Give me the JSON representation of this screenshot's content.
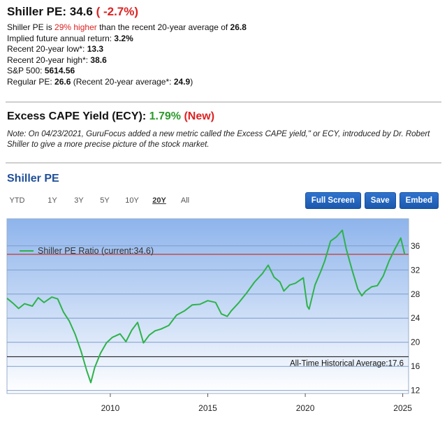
{
  "header": {
    "title_prefix": "Shiller PE: ",
    "title_value": "34.6",
    "title_change": "( -2.7%)"
  },
  "stats": {
    "line1_pre": "Shiller PE is ",
    "line1_pct": "29% higher",
    "line1_mid": " than the recent 20-year average of ",
    "line1_avg": "26.8",
    "line2_label": "Implied future annual return: ",
    "line2_value": "3.2%",
    "line3_label": "Recent 20-year low*: ",
    "line3_value": "13.3",
    "line4_label": "Recent 20-year high*: ",
    "line4_value": "38.6",
    "line5_label": "S&P 500: ",
    "line5_value": "5614.56",
    "line6_label": "Regular PE: ",
    "line6_value": "26.6",
    "line6_mid": " (Recent 20-year average*: ",
    "line6_avg": "24.9",
    "line6_end": ")"
  },
  "ecy": {
    "label": "Excess CAPE Yield (ECY): ",
    "value": "1.79%",
    "badge": "(New)"
  },
  "note": "Note: On 04/23/2021, GuruFocus added a new metric called the Excess CAPE yield,\" or ECY, introduced by Dr. Robert Shiller to give a more precise picture of the stock market.",
  "chart_section": {
    "title": "Shiller PE",
    "ranges": [
      "YTD",
      "1Y",
      "3Y",
      "5Y",
      "10Y",
      "20Y",
      "All"
    ],
    "active_range": "20Y",
    "buttons": {
      "fullscreen": "Full Screen",
      "save": "Save",
      "embed": "Embed"
    }
  },
  "colors": {
    "line": "#2db34a",
    "current_line": "#c0392b",
    "average_line": "#222222",
    "plot_bg_top": "#8eb4ec",
    "plot_bg_bottom": "#ffffff",
    "accent": "#1f5fbf"
  },
  "chart_data": {
    "type": "line",
    "series": [
      {
        "name": "Shiller PE Ratio (current:34.6)",
        "x": [
          2004.7,
          2005.0,
          2005.3,
          2005.6,
          2006.0,
          2006.3,
          2006.6,
          2007.0,
          2007.3,
          2007.6,
          2007.9,
          2008.2,
          2008.5,
          2008.8,
          2009.0,
          2009.2,
          2009.5,
          2009.8,
          2010.1,
          2010.5,
          2010.8,
          2011.1,
          2011.4,
          2011.7,
          2012.0,
          2012.3,
          2012.6,
          2013.0,
          2013.4,
          2013.8,
          2014.2,
          2014.6,
          2015.0,
          2015.4,
          2015.7,
          2016.0,
          2016.2,
          2016.6,
          2017.0,
          2017.4,
          2017.8,
          2018.1,
          2018.4,
          2018.7,
          2018.9,
          2019.2,
          2019.5,
          2019.9,
          2020.1,
          2020.2,
          2020.5,
          2020.8,
          2021.0,
          2021.3,
          2021.6,
          2021.9,
          2022.1,
          2022.4,
          2022.7,
          2022.9,
          2023.1,
          2023.4,
          2023.7,
          2024.0,
          2024.3,
          2024.6,
          2024.9,
          2025.1
        ],
        "y": [
          27.3,
          26.5,
          25.6,
          26.4,
          26.0,
          27.4,
          26.6,
          27.5,
          27.2,
          25.0,
          23.5,
          21.3,
          18.5,
          15.2,
          13.3,
          15.8,
          18.2,
          19.9,
          20.8,
          21.4,
          20.1,
          22.0,
          23.3,
          19.9,
          21.2,
          21.9,
          22.2,
          22.8,
          24.5,
          25.2,
          26.2,
          26.3,
          26.9,
          26.6,
          24.7,
          24.3,
          25.2,
          26.6,
          28.2,
          30.0,
          31.4,
          32.8,
          30.8,
          30.0,
          28.5,
          29.5,
          29.8,
          30.7,
          26.0,
          25.5,
          29.5,
          31.8,
          33.5,
          36.8,
          37.5,
          38.6,
          35.5,
          32.0,
          28.8,
          27.7,
          28.5,
          29.2,
          29.4,
          31.0,
          33.5,
          35.5,
          37.3,
          34.6
        ]
      }
    ],
    "current_value": 34.6,
    "current_label": "Shiller PE Ratio (current:34.6)",
    "historical_average": 17.6,
    "historical_average_label": "All-Time Historical Average:17.6",
    "x_ticks": [
      2010,
      2015,
      2020,
      2025
    ],
    "y_ticks": [
      12,
      16,
      20,
      24,
      28,
      32,
      36
    ],
    "xlim": [
      2004.7,
      2025.3
    ],
    "ylim": [
      11.5,
      40.5
    ],
    "grid": true,
    "legend": "top-left"
  }
}
